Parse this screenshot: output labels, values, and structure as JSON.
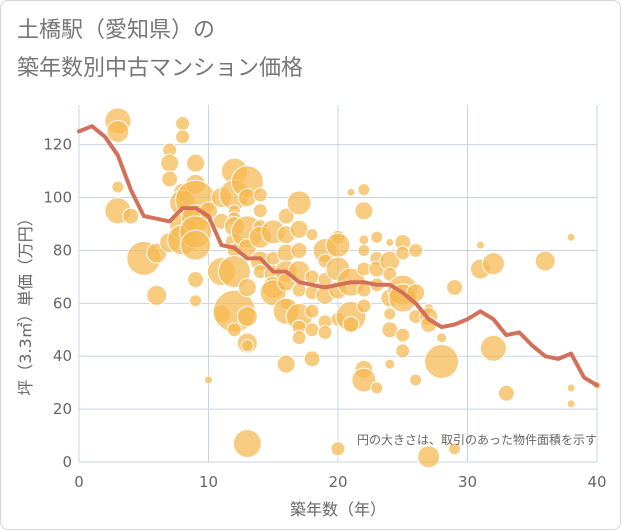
{
  "header": {
    "title_line1": "土橋駅（愛知県）の",
    "title_line2": "築年数別中古マンション価格"
  },
  "colors": {
    "bubble_fill": "#f5b94f",
    "bubble_stroke": "#ffffff",
    "line": "#d2705a",
    "grid": "#c8d4e3"
  },
  "chart_data": {
    "type": "scatter",
    "title": "土橋駅（愛知県）の築年数別中古マンション価格",
    "xlabel": "築年数（年）",
    "ylabel": "坪（3.3㎡）単価（万円）",
    "xlim": [
      0,
      40
    ],
    "ylim": [
      0,
      135
    ],
    "xticks": [
      "0",
      "10",
      "20",
      "30",
      "40"
    ],
    "yticks": [
      "0",
      "20",
      "40",
      "60",
      "80",
      "100",
      "120"
    ],
    "note": "円の大きさは、取引のあった物件面積を示す",
    "grid": true,
    "series": [
      {
        "kind": "bubble",
        "points": [
          {
            "x": 3,
            "y": 129,
            "s": 13
          },
          {
            "x": 3,
            "y": 125,
            "s": 11
          },
          {
            "x": 3,
            "y": 104,
            "s": 6
          },
          {
            "x": 3,
            "y": 95,
            "s": 13
          },
          {
            "x": 4,
            "y": 93,
            "s": 8
          },
          {
            "x": 5,
            "y": 77,
            "s": 17
          },
          {
            "x": 6,
            "y": 79,
            "s": 10
          },
          {
            "x": 6,
            "y": 63,
            "s": 10
          },
          {
            "x": 7,
            "y": 118,
            "s": 7
          },
          {
            "x": 7,
            "y": 113,
            "s": 9
          },
          {
            "x": 7,
            "y": 107,
            "s": 8
          },
          {
            "x": 7,
            "y": 83,
            "s": 10
          },
          {
            "x": 8,
            "y": 128,
            "s": 7
          },
          {
            "x": 8,
            "y": 123,
            "s": 7
          },
          {
            "x": 8,
            "y": 102,
            "s": 9
          },
          {
            "x": 8,
            "y": 98,
            "s": 13
          },
          {
            "x": 8,
            "y": 89,
            "s": 13
          },
          {
            "x": 8,
            "y": 84,
            "s": 15
          },
          {
            "x": 9,
            "y": 113,
            "s": 9
          },
          {
            "x": 9,
            "y": 105,
            "s": 10
          },
          {
            "x": 9,
            "y": 99,
            "s": 20
          },
          {
            "x": 9,
            "y": 92,
            "s": 14
          },
          {
            "x": 9,
            "y": 87,
            "s": 16
          },
          {
            "x": 9,
            "y": 82,
            "s": 15
          },
          {
            "x": 9,
            "y": 69,
            "s": 8
          },
          {
            "x": 9,
            "y": 61,
            "s": 6
          },
          {
            "x": 10,
            "y": 95,
            "s": 9
          },
          {
            "x": 10,
            "y": 31,
            "s": 4
          },
          {
            "x": 11,
            "y": 100,
            "s": 10
          },
          {
            "x": 11,
            "y": 91,
            "s": 8
          },
          {
            "x": 11,
            "y": 72,
            "s": 14
          },
          {
            "x": 11,
            "y": 56,
            "s": 9
          },
          {
            "x": 12,
            "y": 110,
            "s": 13
          },
          {
            "x": 12,
            "y": 101,
            "s": 15
          },
          {
            "x": 12,
            "y": 95,
            "s": 6
          },
          {
            "x": 12,
            "y": 92,
            "s": 7
          },
          {
            "x": 12,
            "y": 89,
            "s": 10
          },
          {
            "x": 12,
            "y": 83,
            "s": 9
          },
          {
            "x": 12,
            "y": 80,
            "s": 7
          },
          {
            "x": 12,
            "y": 72,
            "s": 16
          },
          {
            "x": 12,
            "y": 57,
            "s": 21
          },
          {
            "x": 12,
            "y": 50,
            "s": 7
          },
          {
            "x": 13,
            "y": 106,
            "s": 16
          },
          {
            "x": 13,
            "y": 100,
            "s": 9
          },
          {
            "x": 13,
            "y": 87,
            "s": 16
          },
          {
            "x": 13,
            "y": 81,
            "s": 9
          },
          {
            "x": 13,
            "y": 66,
            "s": 9
          },
          {
            "x": 13,
            "y": 55,
            "s": 10
          },
          {
            "x": 13,
            "y": 45,
            "s": 10
          },
          {
            "x": 13,
            "y": 44,
            "s": 6
          },
          {
            "x": 13,
            "y": 7,
            "s": 14
          },
          {
            "x": 14,
            "y": 101,
            "s": 7
          },
          {
            "x": 14,
            "y": 95,
            "s": 7
          },
          {
            "x": 14,
            "y": 89,
            "s": 7
          },
          {
            "x": 14,
            "y": 85,
            "s": 11
          },
          {
            "x": 14,
            "y": 76,
            "s": 10
          },
          {
            "x": 14,
            "y": 72,
            "s": 7
          },
          {
            "x": 15,
            "y": 87,
            "s": 12
          },
          {
            "x": 15,
            "y": 77,
            "s": 7
          },
          {
            "x": 15,
            "y": 71,
            "s": 9
          },
          {
            "x": 15,
            "y": 66,
            "s": 11
          },
          {
            "x": 15,
            "y": 64,
            "s": 13
          },
          {
            "x": 16,
            "y": 93,
            "s": 8
          },
          {
            "x": 16,
            "y": 86,
            "s": 9
          },
          {
            "x": 16,
            "y": 79,
            "s": 9
          },
          {
            "x": 16,
            "y": 72,
            "s": 11
          },
          {
            "x": 16,
            "y": 68,
            "s": 9
          },
          {
            "x": 16,
            "y": 60,
            "s": 6
          },
          {
            "x": 16,
            "y": 57,
            "s": 13
          },
          {
            "x": 16,
            "y": 37,
            "s": 9
          },
          {
            "x": 17,
            "y": 98,
            "s": 12
          },
          {
            "x": 17,
            "y": 88,
            "s": 9
          },
          {
            "x": 17,
            "y": 80,
            "s": 8
          },
          {
            "x": 17,
            "y": 72,
            "s": 11
          },
          {
            "x": 17,
            "y": 65,
            "s": 7
          },
          {
            "x": 17,
            "y": 55,
            "s": 13
          },
          {
            "x": 17,
            "y": 51,
            "s": 7
          },
          {
            "x": 17,
            "y": 47,
            "s": 7
          },
          {
            "x": 18,
            "y": 86,
            "s": 6
          },
          {
            "x": 18,
            "y": 70,
            "s": 7
          },
          {
            "x": 18,
            "y": 64,
            "s": 7
          },
          {
            "x": 18,
            "y": 57,
            "s": 7
          },
          {
            "x": 18,
            "y": 50,
            "s": 7
          },
          {
            "x": 18,
            "y": 39,
            "s": 8
          },
          {
            "x": 19,
            "y": 80,
            "s": 12
          },
          {
            "x": 19,
            "y": 76,
            "s": 7
          },
          {
            "x": 19,
            "y": 69,
            "s": 7
          },
          {
            "x": 19,
            "y": 63,
            "s": 9
          },
          {
            "x": 19,
            "y": 53,
            "s": 7
          },
          {
            "x": 19,
            "y": 49,
            "s": 7
          },
          {
            "x": 20,
            "y": 85,
            "s": 7
          },
          {
            "x": 20,
            "y": 82,
            "s": 12
          },
          {
            "x": 20,
            "y": 73,
            "s": 12
          },
          {
            "x": 20,
            "y": 65,
            "s": 9
          },
          {
            "x": 20,
            "y": 54,
            "s": 7
          },
          {
            "x": 20,
            "y": 5,
            "s": 7
          },
          {
            "x": 21,
            "y": 102,
            "s": 4
          },
          {
            "x": 21,
            "y": 68,
            "s": 14
          },
          {
            "x": 21,
            "y": 55,
            "s": 15
          },
          {
            "x": 21,
            "y": 52,
            "s": 8
          },
          {
            "x": 22,
            "y": 103,
            "s": 6
          },
          {
            "x": 22,
            "y": 95,
            "s": 9
          },
          {
            "x": 22,
            "y": 84,
            "s": 5
          },
          {
            "x": 22,
            "y": 80,
            "s": 6
          },
          {
            "x": 22,
            "y": 73,
            "s": 7
          },
          {
            "x": 22,
            "y": 65,
            "s": 7
          },
          {
            "x": 22,
            "y": 59,
            "s": 7
          },
          {
            "x": 22,
            "y": 35,
            "s": 9
          },
          {
            "x": 22,
            "y": 31,
            "s": 12
          },
          {
            "x": 23,
            "y": 85,
            "s": 6
          },
          {
            "x": 23,
            "y": 77,
            "s": 7
          },
          {
            "x": 23,
            "y": 73,
            "s": 8
          },
          {
            "x": 23,
            "y": 67,
            "s": 7
          },
          {
            "x": 23,
            "y": 28,
            "s": 6
          },
          {
            "x": 24,
            "y": 83,
            "s": 4
          },
          {
            "x": 24,
            "y": 76,
            "s": 10
          },
          {
            "x": 24,
            "y": 71,
            "s": 7
          },
          {
            "x": 24,
            "y": 62,
            "s": 9
          },
          {
            "x": 24,
            "y": 56,
            "s": 6
          },
          {
            "x": 24,
            "y": 50,
            "s": 8
          },
          {
            "x": 24,
            "y": 37,
            "s": 5
          },
          {
            "x": 25,
            "y": 83,
            "s": 8
          },
          {
            "x": 25,
            "y": 79,
            "s": 7
          },
          {
            "x": 25,
            "y": 65,
            "s": 15
          },
          {
            "x": 25,
            "y": 62,
            "s": 14
          },
          {
            "x": 25,
            "y": 48,
            "s": 7
          },
          {
            "x": 25,
            "y": 42,
            "s": 7
          },
          {
            "x": 26,
            "y": 80,
            "s": 7
          },
          {
            "x": 26,
            "y": 64,
            "s": 9
          },
          {
            "x": 26,
            "y": 55,
            "s": 7
          },
          {
            "x": 26,
            "y": 31,
            "s": 6
          },
          {
            "x": 27,
            "y": 58,
            "s": 5
          },
          {
            "x": 27,
            "y": 55,
            "s": 9
          },
          {
            "x": 27,
            "y": 52,
            "s": 8
          },
          {
            "x": 27,
            "y": 2,
            "s": 11
          },
          {
            "x": 28,
            "y": 38,
            "s": 17
          },
          {
            "x": 28,
            "y": 47,
            "s": 5
          },
          {
            "x": 29,
            "y": 66,
            "s": 8
          },
          {
            "x": 29,
            "y": 5,
            "s": 6
          },
          {
            "x": 31,
            "y": 82,
            "s": 4
          },
          {
            "x": 31,
            "y": 73,
            "s": 10
          },
          {
            "x": 32,
            "y": 75,
            "s": 11
          },
          {
            "x": 32,
            "y": 43,
            "s": 13
          },
          {
            "x": 33,
            "y": 26,
            "s": 8
          },
          {
            "x": 36,
            "y": 76,
            "s": 10
          },
          {
            "x": 38,
            "y": 85,
            "s": 4
          },
          {
            "x": 38,
            "y": 28,
            "s": 4
          },
          {
            "x": 38,
            "y": 22,
            "s": 4
          },
          {
            "x": 40,
            "y": 29,
            "s": 4
          }
        ]
      },
      {
        "kind": "line",
        "x": [
          0,
          1,
          2,
          3,
          4,
          5,
          6,
          7,
          8,
          9,
          10,
          11,
          12,
          13,
          14,
          15,
          16,
          17,
          18,
          19,
          20,
          21,
          22,
          23,
          24,
          25,
          26,
          27,
          28,
          29,
          30,
          31,
          32,
          33,
          34,
          35,
          36,
          37,
          38,
          39,
          40
        ],
        "y": [
          125,
          127,
          123,
          116,
          103,
          93,
          92,
          91,
          96,
          96,
          93,
          82,
          81,
          77,
          77,
          72,
          72,
          68,
          67,
          66,
          67,
          68,
          68,
          67,
          67,
          64,
          60,
          54,
          51,
          52,
          54,
          57,
          54,
          48,
          49,
          44,
          40,
          39,
          41,
          32,
          29
        ]
      }
    ]
  }
}
